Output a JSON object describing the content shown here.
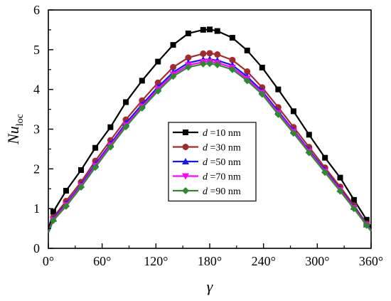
{
  "chart_data": {
    "type": "line",
    "title": "",
    "xlabel": "γ",
    "ylabel": {
      "main": "Nu",
      "subscript": "loc"
    },
    "xlim": [
      0,
      360
    ],
    "ylim": [
      0,
      6
    ],
    "x_ticks": [
      0,
      60,
      120,
      180,
      240,
      300,
      360
    ],
    "x_tick_labels": [
      "0°",
      "60°",
      "120°",
      "180°",
      "240°",
      "300°",
      "360°"
    ],
    "y_ticks": [
      0,
      1,
      2,
      3,
      4,
      5,
      6
    ],
    "y_tick_labels": [
      "0",
      "1",
      "2",
      "3",
      "4",
      "5",
      "6"
    ],
    "grid": false,
    "legend_position": "center-right",
    "x": [
      0,
      5.5,
      19.8,
      36.5,
      52.4,
      69.3,
      86.5,
      104.5,
      122.3,
      139.2,
      156.1,
      172.7,
      180,
      188.5,
      205.3,
      221.8,
      238.5,
      256.4,
      273.5,
      290.8,
      308.6,
      325.5,
      340.9,
      355,
      360
    ],
    "series": [
      {
        "name": "d =10 nm",
        "legend_var": "d",
        "legend_rest": " =10 nm",
        "color": "#000000",
        "marker": "square",
        "values": [
          0.47,
          0.92,
          1.45,
          1.97,
          2.53,
          3.05,
          3.68,
          4.22,
          4.7,
          5.12,
          5.41,
          5.5,
          5.51,
          5.47,
          5.3,
          4.98,
          4.55,
          4.0,
          3.45,
          2.86,
          2.28,
          1.78,
          1.22,
          0.72,
          0.52
        ]
      },
      {
        "name": "d =30 nm",
        "legend_var": "d",
        "legend_rest": " =30 nm",
        "color": "#a52a2a",
        "marker": "circle",
        "values": [
          0.42,
          0.78,
          1.19,
          1.67,
          2.2,
          2.72,
          3.24,
          3.72,
          4.17,
          4.56,
          4.8,
          4.9,
          4.91,
          4.88,
          4.74,
          4.45,
          4.05,
          3.55,
          3.05,
          2.55,
          2.03,
          1.55,
          1.08,
          0.62,
          0.46
        ]
      },
      {
        "name": "d =50 nm",
        "legend_var": "d",
        "legend_rest": " =50 nm",
        "color": "#1515ff",
        "marker": "triangle-up",
        "values": [
          0.41,
          0.74,
          1.12,
          1.6,
          2.12,
          2.63,
          3.15,
          3.62,
          4.06,
          4.43,
          4.67,
          4.75,
          4.76,
          4.73,
          4.61,
          4.32,
          3.96,
          3.45,
          2.97,
          2.47,
          1.97,
          1.49,
          1.04,
          0.6,
          0.45
        ]
      },
      {
        "name": "d =70 nm",
        "legend_var": "d",
        "legend_rest": " =70 nm",
        "color": "#ff00ff",
        "marker": "triangle-down",
        "values": [
          0.4,
          0.72,
          1.09,
          1.57,
          2.08,
          2.59,
          3.1,
          3.57,
          4.01,
          4.38,
          4.61,
          4.69,
          4.7,
          4.67,
          4.55,
          4.27,
          3.92,
          3.41,
          2.94,
          2.44,
          1.94,
          1.47,
          1.02,
          0.59,
          0.44
        ]
      },
      {
        "name": "d =90 nm",
        "legend_var": "d",
        "legend_rest": " =90 nm",
        "color": "#2f8a2f",
        "marker": "diamond",
        "values": [
          0.39,
          0.7,
          1.06,
          1.54,
          2.04,
          2.55,
          3.06,
          3.53,
          3.96,
          4.33,
          4.56,
          4.64,
          4.65,
          4.62,
          4.5,
          4.22,
          3.88,
          3.37,
          2.9,
          2.41,
          1.91,
          1.44,
          1.0,
          0.58,
          0.43
        ]
      }
    ]
  }
}
